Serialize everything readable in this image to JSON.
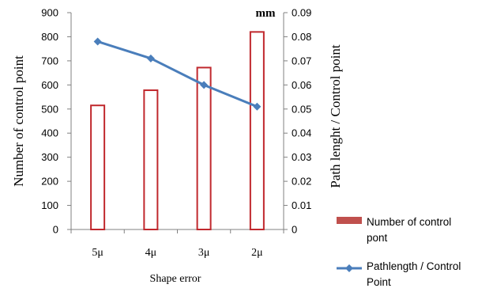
{
  "chart_data": {
    "type": "bar",
    "categories": [
      "5μ",
      "4μ",
      "3μ",
      "2μ"
    ],
    "xlabel": "Shape error",
    "ylabel_left": "Number of control point",
    "ylabel_right": "Path lenght / Control point",
    "right_unit": "mm",
    "ylim_left": [
      0,
      900
    ],
    "yticks_left": [
      "0",
      "100",
      "200",
      "300",
      "400",
      "500",
      "600",
      "700",
      "800",
      "900"
    ],
    "ylim_right": [
      0,
      0.09
    ],
    "yticks_right": [
      "0",
      "0.01",
      "0.02",
      "0.03",
      "0.04",
      "0.05",
      "0.06",
      "0.07",
      "0.08",
      "0.09"
    ],
    "grid": false,
    "legend_position": "right",
    "series": [
      {
        "name": "Number of control pont",
        "type": "bar",
        "axis": "left",
        "color": "#c0282d",
        "values": [
          515,
          578,
          672,
          820
        ]
      },
      {
        "name": "Pathlength / Control Point",
        "type": "line",
        "axis": "right",
        "color": "#4a7ebb",
        "marker": "diamond",
        "values": [
          0.078,
          0.071,
          0.06,
          0.051
        ]
      }
    ]
  }
}
